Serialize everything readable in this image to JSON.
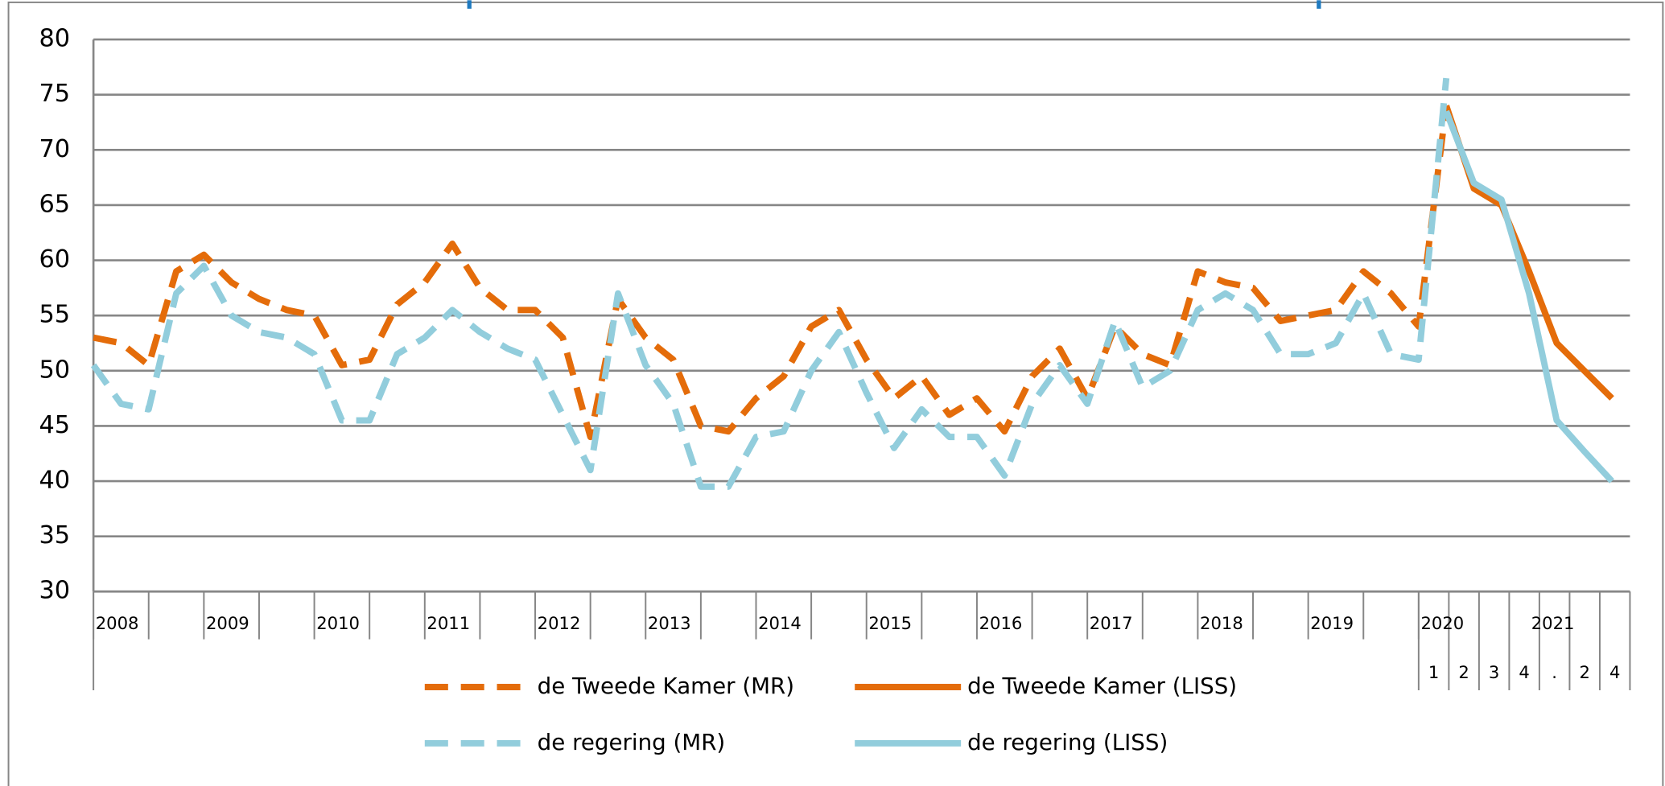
{
  "chart_data": {
    "type": "line",
    "categories": [
      "2008",
      null,
      null,
      null,
      "2009",
      null,
      null,
      null,
      "2010",
      null,
      null,
      null,
      "2011",
      null,
      null,
      null,
      "2012",
      null,
      null,
      null,
      "2013",
      null,
      null,
      null,
      "2014",
      null,
      null,
      null,
      "2015",
      null,
      null,
      null,
      "2016",
      null,
      null,
      null,
      "2017",
      null,
      null,
      null,
      "2018",
      null,
      null,
      null,
      "2019",
      null,
      null,
      null,
      "2020",
      null,
      null,
      null,
      "2021",
      null,
      null,
      null
    ],
    "quarter_labels": [
      "1",
      "2",
      "3",
      "4",
      ".",
      "2",
      "4"
    ],
    "ylim": [
      30,
      80
    ],
    "yticks": [
      30,
      35,
      40,
      45,
      50,
      55,
      60,
      65,
      70,
      75,
      80
    ],
    "grid": true,
    "series": [
      {
        "name": "de Tweede Kamer (MR)",
        "color": "#E46C0A",
        "line_style": "dashed",
        "values": [
          53,
          52.5,
          50.5,
          59,
          60.5,
          58,
          56.5,
          55.5,
          55,
          50.5,
          51,
          56,
          58,
          61.5,
          57.5,
          55.5,
          55.5,
          53,
          44,
          56.5,
          53,
          51,
          45,
          44.5,
          47.5,
          49.5,
          54,
          55.5,
          51,
          47.5,
          49.5,
          46,
          47.5,
          44.5,
          49.5,
          52,
          47.5,
          54,
          51.5,
          50.5,
          59,
          58,
          57.5,
          54.5,
          55,
          55.5,
          59,
          57,
          54,
          74,
          null,
          null,
          null,
          null,
          null,
          null
        ]
      },
      {
        "name": "de Tweede Kamer (LISS)",
        "color": "#E46C0A",
        "line_style": "solid",
        "values": [
          null,
          null,
          null,
          null,
          null,
          null,
          null,
          null,
          null,
          null,
          null,
          null,
          null,
          null,
          null,
          null,
          null,
          null,
          null,
          null,
          null,
          null,
          null,
          null,
          null,
          null,
          null,
          null,
          null,
          null,
          null,
          null,
          null,
          null,
          null,
          null,
          null,
          null,
          null,
          null,
          null,
          null,
          null,
          null,
          null,
          null,
          null,
          null,
          null,
          74,
          66.5,
          65,
          59,
          52.5,
          50,
          47.5
        ]
      },
      {
        "name": "de regering (MR)",
        "color": "#92CDDC",
        "line_style": "dashed",
        "values": [
          50.5,
          47,
          46.5,
          57,
          59.5,
          55,
          53.5,
          53,
          51.5,
          45.5,
          45.5,
          51.5,
          53,
          55.5,
          53.5,
          52,
          51,
          46,
          41,
          57,
          50.5,
          47,
          39.5,
          39.5,
          44,
          44.5,
          50,
          53.5,
          48,
          43,
          46.5,
          44,
          44,
          40.5,
          47,
          50.5,
          47,
          54.5,
          48.5,
          50,
          55.5,
          57,
          55.5,
          51.5,
          51.5,
          52.5,
          57,
          51.5,
          51,
          76.5,
          null,
          null,
          null,
          null,
          null,
          null
        ]
      },
      {
        "name": "de regering (LISS)",
        "color": "#92CDDC",
        "line_style": "solid",
        "values": [
          null,
          null,
          null,
          null,
          null,
          null,
          null,
          null,
          null,
          null,
          null,
          null,
          null,
          null,
          null,
          null,
          null,
          null,
          null,
          null,
          null,
          null,
          null,
          null,
          null,
          null,
          null,
          null,
          null,
          null,
          null,
          null,
          null,
          null,
          null,
          null,
          null,
          null,
          null,
          null,
          null,
          null,
          null,
          null,
          null,
          null,
          null,
          null,
          null,
          73.5,
          67,
          65.5,
          57,
          45.5,
          42.7,
          40
        ]
      }
    ]
  }
}
